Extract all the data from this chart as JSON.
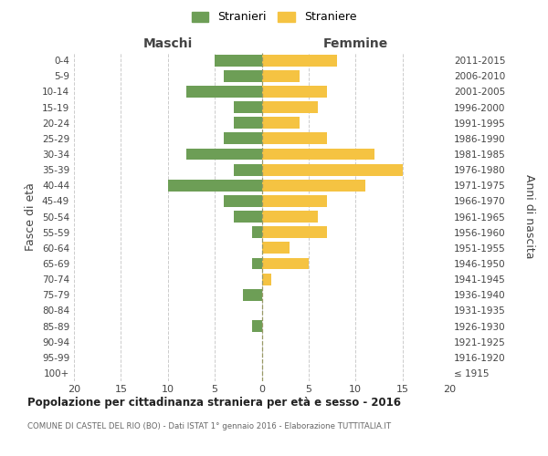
{
  "age_groups": [
    "100+",
    "95-99",
    "90-94",
    "85-89",
    "80-84",
    "75-79",
    "70-74",
    "65-69",
    "60-64",
    "55-59",
    "50-54",
    "45-49",
    "40-44",
    "35-39",
    "30-34",
    "25-29",
    "20-24",
    "15-19",
    "10-14",
    "5-9",
    "0-4"
  ],
  "birth_years": [
    "≤ 1915",
    "1916-1920",
    "1921-1925",
    "1926-1930",
    "1931-1935",
    "1936-1940",
    "1941-1945",
    "1946-1950",
    "1951-1955",
    "1956-1960",
    "1961-1965",
    "1966-1970",
    "1971-1975",
    "1976-1980",
    "1981-1985",
    "1986-1990",
    "1991-1995",
    "1996-2000",
    "2001-2005",
    "2006-2010",
    "2011-2015"
  ],
  "males": [
    0,
    0,
    0,
    1,
    0,
    2,
    0,
    1,
    0,
    1,
    3,
    4,
    10,
    3,
    8,
    4,
    3,
    3,
    8,
    4,
    5
  ],
  "females": [
    0,
    0,
    0,
    0,
    0,
    0,
    1,
    5,
    3,
    7,
    6,
    7,
    11,
    15,
    12,
    7,
    4,
    6,
    7,
    4,
    8
  ],
  "male_color": "#6d9e56",
  "female_color": "#f5c342",
  "background_color": "#ffffff",
  "grid_color": "#cccccc",
  "center_line_color": "#aaaaaa",
  "title": "Popolazione per cittadinanza straniera per età e sesso - 2016",
  "subtitle": "COMUNE DI CASTEL DEL RIO (BO) - Dati ISTAT 1° gennaio 2016 - Elaborazione TUTTITALIA.IT",
  "label_maschi": "Maschi",
  "label_femmine": "Femmine",
  "ylabel_left": "Fasce di età",
  "ylabel_right": "Anni di nascita",
  "legend_male": "Stranieri",
  "legend_female": "Straniere",
  "xlim": 20,
  "bar_height": 0.75
}
